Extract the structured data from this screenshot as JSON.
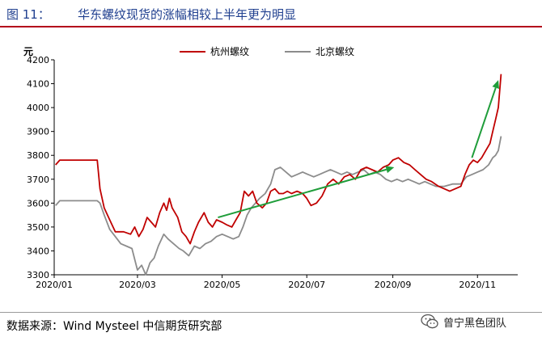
{
  "figure": {
    "label": "图 11：",
    "title": "华东螺纹现货的涨幅相较上半年更为明显"
  },
  "source": "数据来源：Wind Mysteel 中信期货研究部",
  "brand": {
    "name": "曾宁黑色团队",
    "icon": "wechat-icon"
  },
  "chart_data": {
    "type": "line",
    "ylabel": "元",
    "ylim": [
      3300,
      4200
    ],
    "yticks": [
      3300,
      3400,
      3500,
      3600,
      3700,
      3800,
      3900,
      4000,
      4100,
      4200
    ],
    "xlim": [
      "2020-01-01",
      "2020-11-30"
    ],
    "xticks": [
      {
        "label": "2020/01",
        "date": "2020-01-01"
      },
      {
        "label": "2020/03",
        "date": "2020-03-01"
      },
      {
        "label": "2020/05",
        "date": "2020-05-01"
      },
      {
        "label": "2020/07",
        "date": "2020-07-01"
      },
      {
        "label": "2020/09",
        "date": "2020-09-01"
      },
      {
        "label": "2020/11",
        "date": "2020-11-01"
      }
    ],
    "grid": false,
    "legend": "top-center",
    "series": [
      {
        "name": "杭州螺纹",
        "color": "#c00000",
        "points": [
          [
            "2020-01-02",
            3760
          ],
          [
            "2020-01-05",
            3780
          ],
          [
            "2020-01-20",
            3780
          ],
          [
            "2020-02-01",
            3780
          ],
          [
            "2020-02-03",
            3660
          ],
          [
            "2020-02-06",
            3580
          ],
          [
            "2020-02-10",
            3530
          ],
          [
            "2020-02-14",
            3480
          ],
          [
            "2020-02-20",
            3480
          ],
          [
            "2020-02-25",
            3470
          ],
          [
            "2020-02-28",
            3500
          ],
          [
            "2020-03-02",
            3460
          ],
          [
            "2020-03-05",
            3490
          ],
          [
            "2020-03-08",
            3540
          ],
          [
            "2020-03-11",
            3520
          ],
          [
            "2020-03-14",
            3500
          ],
          [
            "2020-03-17",
            3560
          ],
          [
            "2020-03-20",
            3600
          ],
          [
            "2020-03-22",
            3570
          ],
          [
            "2020-03-24",
            3620
          ],
          [
            "2020-03-26",
            3580
          ],
          [
            "2020-03-30",
            3540
          ],
          [
            "2020-04-02",
            3480
          ],
          [
            "2020-04-05",
            3460
          ],
          [
            "2020-04-08",
            3430
          ],
          [
            "2020-04-11",
            3480
          ],
          [
            "2020-04-14",
            3520
          ],
          [
            "2020-04-18",
            3560
          ],
          [
            "2020-04-21",
            3520
          ],
          [
            "2020-04-24",
            3500
          ],
          [
            "2020-04-27",
            3530
          ],
          [
            "2020-05-01",
            3520
          ],
          [
            "2020-05-04",
            3510
          ],
          [
            "2020-05-08",
            3500
          ],
          [
            "2020-05-11",
            3530
          ],
          [
            "2020-05-14",
            3560
          ],
          [
            "2020-05-17",
            3650
          ],
          [
            "2020-05-20",
            3630
          ],
          [
            "2020-05-23",
            3650
          ],
          [
            "2020-05-26",
            3600
          ],
          [
            "2020-05-30",
            3580
          ],
          [
            "2020-06-02",
            3600
          ],
          [
            "2020-06-05",
            3650
          ],
          [
            "2020-06-08",
            3660
          ],
          [
            "2020-06-11",
            3640
          ],
          [
            "2020-06-14",
            3640
          ],
          [
            "2020-06-17",
            3650
          ],
          [
            "2020-06-20",
            3640
          ],
          [
            "2020-06-24",
            3650
          ],
          [
            "2020-06-28",
            3640
          ],
          [
            "2020-07-01",
            3620
          ],
          [
            "2020-07-04",
            3590
          ],
          [
            "2020-07-08",
            3600
          ],
          [
            "2020-07-12",
            3630
          ],
          [
            "2020-07-16",
            3680
          ],
          [
            "2020-07-20",
            3700
          ],
          [
            "2020-07-24",
            3680
          ],
          [
            "2020-07-28",
            3710
          ],
          [
            "2020-08-01",
            3720
          ],
          [
            "2020-08-05",
            3700
          ],
          [
            "2020-08-09",
            3740
          ],
          [
            "2020-08-13",
            3750
          ],
          [
            "2020-08-17",
            3740
          ],
          [
            "2020-08-21",
            3730
          ],
          [
            "2020-08-25",
            3750
          ],
          [
            "2020-08-29",
            3760
          ],
          [
            "2020-09-01",
            3780
          ],
          [
            "2020-09-05",
            3790
          ],
          [
            "2020-09-09",
            3770
          ],
          [
            "2020-09-13",
            3760
          ],
          [
            "2020-09-17",
            3740
          ],
          [
            "2020-09-21",
            3720
          ],
          [
            "2020-09-25",
            3700
          ],
          [
            "2020-09-29",
            3690
          ],
          [
            "2020-10-04",
            3670
          ],
          [
            "2020-10-08",
            3660
          ],
          [
            "2020-10-12",
            3650
          ],
          [
            "2020-10-16",
            3660
          ],
          [
            "2020-10-20",
            3670
          ],
          [
            "2020-10-23",
            3720
          ],
          [
            "2020-10-26",
            3760
          ],
          [
            "2020-10-29",
            3780
          ],
          [
            "2020-11-01",
            3770
          ],
          [
            "2020-11-04",
            3790
          ],
          [
            "2020-11-07",
            3820
          ],
          [
            "2020-11-10",
            3850
          ],
          [
            "2020-11-12",
            3900
          ],
          [
            "2020-11-14",
            3950
          ],
          [
            "2020-11-16",
            4000
          ],
          [
            "2020-11-18",
            4140
          ]
        ]
      },
      {
        "name": "北京螺纹",
        "color": "#8c8c8c",
        "points": [
          [
            "2020-01-02",
            3590
          ],
          [
            "2020-01-05",
            3610
          ],
          [
            "2020-01-20",
            3610
          ],
          [
            "2020-02-01",
            3610
          ],
          [
            "2020-02-03",
            3600
          ],
          [
            "2020-02-06",
            3550
          ],
          [
            "2020-02-10",
            3490
          ],
          [
            "2020-02-14",
            3460
          ],
          [
            "2020-02-18",
            3430
          ],
          [
            "2020-02-22",
            3420
          ],
          [
            "2020-02-26",
            3410
          ],
          [
            "2020-03-01",
            3320
          ],
          [
            "2020-03-04",
            3340
          ],
          [
            "2020-03-07",
            3300
          ],
          [
            "2020-03-10",
            3350
          ],
          [
            "2020-03-13",
            3370
          ],
          [
            "2020-03-16",
            3420
          ],
          [
            "2020-03-20",
            3470
          ],
          [
            "2020-03-23",
            3450
          ],
          [
            "2020-03-27",
            3430
          ],
          [
            "2020-03-31",
            3410
          ],
          [
            "2020-04-03",
            3400
          ],
          [
            "2020-04-07",
            3380
          ],
          [
            "2020-04-11",
            3420
          ],
          [
            "2020-04-15",
            3410
          ],
          [
            "2020-04-19",
            3430
          ],
          [
            "2020-04-23",
            3440
          ],
          [
            "2020-04-27",
            3460
          ],
          [
            "2020-05-01",
            3470
          ],
          [
            "2020-05-05",
            3460
          ],
          [
            "2020-05-09",
            3450
          ],
          [
            "2020-05-13",
            3460
          ],
          [
            "2020-05-16",
            3500
          ],
          [
            "2020-05-19",
            3550
          ],
          [
            "2020-05-22",
            3580
          ],
          [
            "2020-05-25",
            3600
          ],
          [
            "2020-05-28",
            3620
          ],
          [
            "2020-06-01",
            3640
          ],
          [
            "2020-06-05",
            3680
          ],
          [
            "2020-06-08",
            3740
          ],
          [
            "2020-06-12",
            3750
          ],
          [
            "2020-06-16",
            3730
          ],
          [
            "2020-06-20",
            3710
          ],
          [
            "2020-06-24",
            3720
          ],
          [
            "2020-06-28",
            3730
          ],
          [
            "2020-07-02",
            3720
          ],
          [
            "2020-07-06",
            3710
          ],
          [
            "2020-07-10",
            3720
          ],
          [
            "2020-07-14",
            3730
          ],
          [
            "2020-07-18",
            3740
          ],
          [
            "2020-07-22",
            3730
          ],
          [
            "2020-07-26",
            3720
          ],
          [
            "2020-07-30",
            3730
          ],
          [
            "2020-08-03",
            3720
          ],
          [
            "2020-08-07",
            3730
          ],
          [
            "2020-08-11",
            3740
          ],
          [
            "2020-08-15",
            3720
          ],
          [
            "2020-08-19",
            3730
          ],
          [
            "2020-08-23",
            3720
          ],
          [
            "2020-08-27",
            3700
          ],
          [
            "2020-08-31",
            3690
          ],
          [
            "2020-09-04",
            3700
          ],
          [
            "2020-09-08",
            3690
          ],
          [
            "2020-09-12",
            3700
          ],
          [
            "2020-09-16",
            3690
          ],
          [
            "2020-09-20",
            3680
          ],
          [
            "2020-09-24",
            3690
          ],
          [
            "2020-09-28",
            3680
          ],
          [
            "2020-10-02",
            3670
          ],
          [
            "2020-10-08",
            3670
          ],
          [
            "2020-10-14",
            3680
          ],
          [
            "2020-10-20",
            3680
          ],
          [
            "2020-10-24",
            3710
          ],
          [
            "2020-10-28",
            3720
          ],
          [
            "2020-11-01",
            3730
          ],
          [
            "2020-11-05",
            3740
          ],
          [
            "2020-11-09",
            3760
          ],
          [
            "2020-11-12",
            3790
          ],
          [
            "2020-11-14",
            3800
          ],
          [
            "2020-11-16",
            3820
          ],
          [
            "2020-11-18",
            3880
          ]
        ]
      }
    ],
    "annotations": [
      {
        "type": "arrow",
        "color": "#1f9d3a",
        "from": [
          "2020-04-28",
          3540
        ],
        "to": [
          "2020-09-02",
          3750
        ]
      },
      {
        "type": "arrow",
        "color": "#1f9d3a",
        "from": [
          "2020-10-28",
          3790
        ],
        "to": [
          "2020-11-16",
          4115
        ]
      }
    ]
  }
}
